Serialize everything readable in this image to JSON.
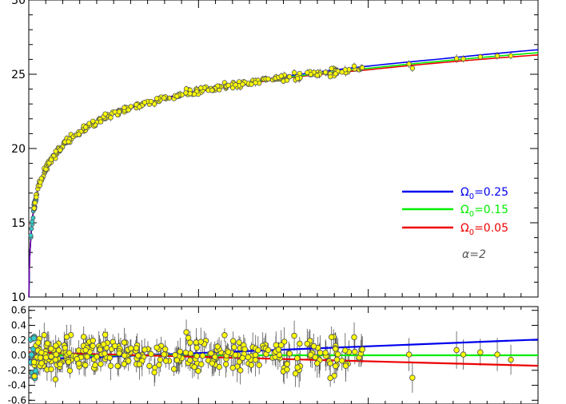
{
  "chart_data": [
    {
      "type": "scatter",
      "panel": "main",
      "xlim": [
        0,
        1.5
      ],
      "ylim": [
        10,
        30
      ],
      "y_ticks": [
        10,
        15,
        20,
        25,
        30
      ],
      "annotation": "α=2",
      "models": [
        {
          "name": "Ω₀=0.25",
          "label_main": "Ω",
          "label_sub": "0",
          "label_rest": "=0.25",
          "color": "#0000ee",
          "x": [
            0.0005,
            0.005,
            0.01,
            0.02,
            0.04,
            0.08,
            0.15,
            0.25,
            0.4,
            0.6,
            0.8,
            1.0,
            1.2,
            1.5
          ],
          "y": [
            10.0,
            13.6,
            15.1,
            16.6,
            18.1,
            19.7,
            21.1,
            22.3,
            23.4,
            24.3,
            25.0,
            25.55,
            26.0,
            26.65
          ]
        },
        {
          "name": "Ω₀=0.15",
          "label_main": "Ω",
          "label_sub": "0",
          "label_rest": "=0.15",
          "color": "#00ee00",
          "x": [
            0.0005,
            0.005,
            0.01,
            0.02,
            0.04,
            0.08,
            0.15,
            0.25,
            0.4,
            0.6,
            0.8,
            1.0,
            1.2,
            1.5
          ],
          "y": [
            10.0,
            13.6,
            15.1,
            16.6,
            18.1,
            19.7,
            21.1,
            22.3,
            23.4,
            24.25,
            24.9,
            25.4,
            25.85,
            26.45
          ]
        },
        {
          "name": "Ω₀=0.05",
          "label_main": "Ω",
          "label_sub": "0",
          "label_rest": "=0.05",
          "color": "#ee0000",
          "x": [
            0.0005,
            0.005,
            0.01,
            0.02,
            0.04,
            0.08,
            0.15,
            0.25,
            0.4,
            0.6,
            0.8,
            1.0,
            1.2,
            1.5
          ],
          "y": [
            10.0,
            13.6,
            15.1,
            16.6,
            18.1,
            19.7,
            21.1,
            22.3,
            23.4,
            24.2,
            24.85,
            25.3,
            25.75,
            26.3
          ]
        }
      ],
      "fit_curve": {
        "color": "#6a00a8"
      },
      "points_color": "#ffff00",
      "points_edge": "#555555",
      "lowz_points_color": "#33cccc"
    },
    {
      "type": "scatter",
      "panel": "residuals",
      "xlim": [
        0,
        1.5
      ],
      "ylim": [
        -0.65,
        0.65
      ],
      "y_ticks": [
        -0.6,
        -0.4,
        -0.2,
        0.0,
        0.2,
        0.4,
        0.6
      ],
      "y_tick_labels": [
        "-0.6",
        "-0.4",
        "-0.2",
        "0.0",
        "0.2",
        "0.4",
        "0.6"
      ],
      "models": [
        {
          "name": "Ω₀=0.25",
          "color": "#0000ee",
          "x": [
            0.0,
            1.5
          ],
          "y": [
            -0.06,
            0.21
          ]
        },
        {
          "name": "Ω₀=0.15",
          "color": "#00ee00",
          "x": [
            0.0,
            1.5
          ],
          "y": [
            0.0,
            0.0
          ]
        },
        {
          "name": "Ω₀=0.05",
          "color": "#ee0000",
          "x": [
            0.0,
            1.5
          ],
          "y": [
            0.04,
            -0.14
          ]
        }
      ],
      "highz_points": {
        "x": [
          1.12,
          1.13,
          1.26,
          1.28,
          1.33,
          1.38,
          1.42
        ],
        "y": [
          0.01,
          -0.3,
          0.07,
          0.01,
          0.04,
          0.01,
          -0.06
        ],
        "err": [
          0.22,
          0.2,
          0.25,
          0.2,
          0.18,
          0.22,
          0.2
        ]
      }
    }
  ]
}
